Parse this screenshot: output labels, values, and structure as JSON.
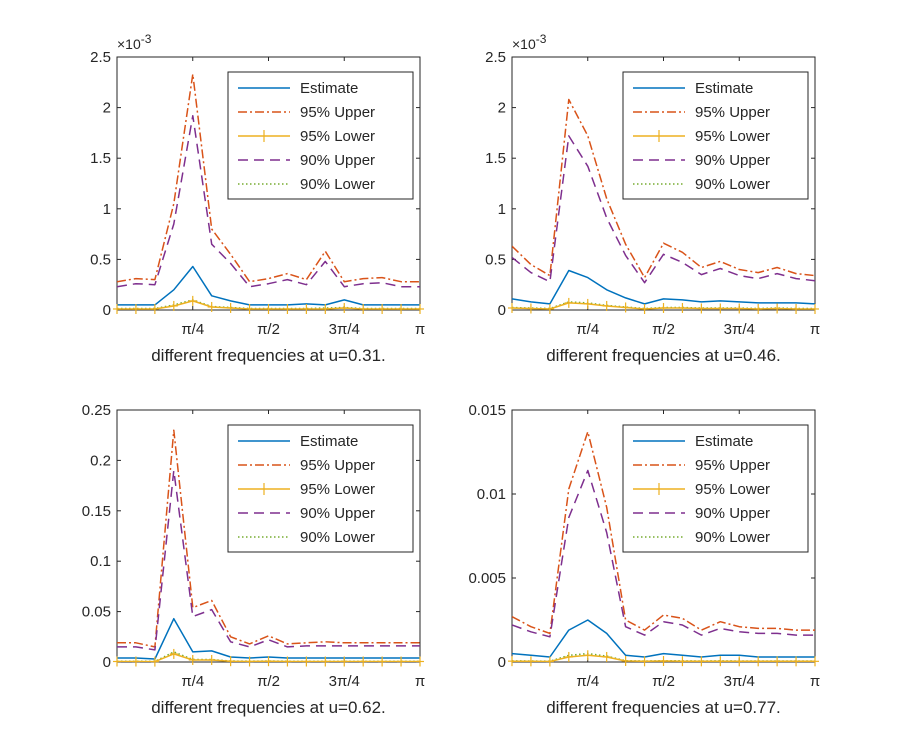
{
  "colors": {
    "estimate": "#0072BD",
    "upper95": "#D95319",
    "lower95": "#EDB120",
    "upper90": "#7E2F8E",
    "lower90": "#77AC30",
    "axis": "#262626"
  },
  "chart_data": [
    {
      "type": "line",
      "title": "",
      "xlabel": "different frequencies at u=0.31.",
      "ylabel": "",
      "exponent_label": "×10",
      "exponent_power": "-3",
      "xlim": [
        0,
        3.14159
      ],
      "ylim": [
        0,
        2.5
      ],
      "yticks": [
        0,
        0.5,
        1,
        1.5,
        2,
        2.5
      ],
      "ytick_labels": [
        "0",
        "0.5",
        "1",
        "1.5",
        "2",
        "2.5"
      ],
      "xticks": [
        0.7854,
        1.5708,
        2.3562,
        3.14159
      ],
      "xtick_labels": [
        "π/4",
        "π/2",
        "3π/4",
        "π"
      ],
      "x": [
        0,
        0.1963,
        0.3927,
        0.589,
        0.7854,
        0.9817,
        1.1781,
        1.3744,
        1.5708,
        1.7671,
        1.9635,
        2.1598,
        2.3562,
        2.5525,
        2.7489,
        2.9452,
        3.1416
      ],
      "series": [
        {
          "name": "Estimate",
          "values": [
            0.05,
            0.05,
            0.05,
            0.2,
            0.43,
            0.14,
            0.09,
            0.05,
            0.05,
            0.05,
            0.06,
            0.05,
            0.1,
            0.05,
            0.05,
            0.05,
            0.05
          ]
        },
        {
          "name": "95% Upper",
          "values": [
            0.28,
            0.31,
            0.3,
            1.05,
            2.33,
            0.8,
            0.55,
            0.28,
            0.31,
            0.36,
            0.3,
            0.58,
            0.28,
            0.31,
            0.32,
            0.28,
            0.28
          ]
        },
        {
          "name": "95% Lower",
          "values": [
            0.01,
            0.01,
            0.01,
            0.04,
            0.09,
            0.03,
            0.02,
            0.01,
            0.01,
            0.01,
            0.01,
            0.01,
            0.02,
            0.01,
            0.01,
            0.01,
            0.01
          ]
        },
        {
          "name": "90% Upper",
          "values": [
            0.23,
            0.26,
            0.25,
            0.85,
            1.92,
            0.65,
            0.46,
            0.23,
            0.26,
            0.3,
            0.25,
            0.48,
            0.23,
            0.26,
            0.27,
            0.23,
            0.23
          ]
        },
        {
          "name": "90% Lower",
          "values": [
            0.015,
            0.015,
            0.015,
            0.05,
            0.1,
            0.035,
            0.025,
            0.015,
            0.015,
            0.015,
            0.015,
            0.02,
            0.025,
            0.015,
            0.015,
            0.015,
            0.015
          ]
        }
      ],
      "legend_position": "top-right",
      "grid": false
    },
    {
      "type": "line",
      "title": "",
      "xlabel": "different frequencies at u=0.46.",
      "ylabel": "",
      "exponent_label": "×10",
      "exponent_power": "-3",
      "xlim": [
        0,
        3.14159
      ],
      "ylim": [
        0,
        2.5
      ],
      "yticks": [
        0,
        0.5,
        1,
        1.5,
        2,
        2.5
      ],
      "ytick_labels": [
        "0",
        "0.5",
        "1",
        "1.5",
        "2",
        "2.5"
      ],
      "xticks": [
        0.7854,
        1.5708,
        2.3562,
        3.14159
      ],
      "xtick_labels": [
        "π/4",
        "π/2",
        "3π/4",
        "π"
      ],
      "x": [
        0,
        0.1963,
        0.3927,
        0.589,
        0.7854,
        0.9817,
        1.1781,
        1.3744,
        1.5708,
        1.7671,
        1.9635,
        2.1598,
        2.3562,
        2.5525,
        2.7489,
        2.9452,
        3.1416
      ],
      "series": [
        {
          "name": "Estimate",
          "values": [
            0.11,
            0.08,
            0.06,
            0.39,
            0.32,
            0.2,
            0.12,
            0.06,
            0.11,
            0.1,
            0.08,
            0.09,
            0.08,
            0.07,
            0.07,
            0.07,
            0.06
          ]
        },
        {
          "name": "95% Upper",
          "values": [
            0.63,
            0.45,
            0.34,
            2.08,
            1.72,
            1.1,
            0.65,
            0.32,
            0.66,
            0.57,
            0.42,
            0.48,
            0.4,
            0.37,
            0.42,
            0.36,
            0.34
          ]
        },
        {
          "name": "95% Lower",
          "values": [
            0.02,
            0.015,
            0.01,
            0.07,
            0.06,
            0.04,
            0.025,
            0.01,
            0.02,
            0.02,
            0.015,
            0.015,
            0.015,
            0.01,
            0.015,
            0.01,
            0.01
          ]
        },
        {
          "name": "90% Upper",
          "values": [
            0.52,
            0.37,
            0.28,
            1.72,
            1.42,
            0.91,
            0.54,
            0.27,
            0.55,
            0.47,
            0.35,
            0.41,
            0.34,
            0.31,
            0.36,
            0.31,
            0.29
          ]
        },
        {
          "name": "90% Lower",
          "values": [
            0.025,
            0.02,
            0.015,
            0.08,
            0.07,
            0.045,
            0.03,
            0.015,
            0.025,
            0.025,
            0.02,
            0.02,
            0.02,
            0.015,
            0.02,
            0.015,
            0.015
          ]
        }
      ],
      "legend_position": "top-right",
      "grid": false
    },
    {
      "type": "line",
      "title": "",
      "xlabel": "different frequencies at u=0.62.",
      "ylabel": "",
      "exponent_label": "",
      "exponent_power": "",
      "xlim": [
        0,
        3.14159
      ],
      "ylim": [
        0,
        0.25
      ],
      "yticks": [
        0,
        0.05,
        0.1,
        0.15,
        0.2,
        0.25
      ],
      "ytick_labels": [
        "0",
        "0.05",
        "0.1",
        "0.15",
        "0.2",
        "0.25"
      ],
      "xticks": [
        0.7854,
        1.5708,
        2.3562,
        3.14159
      ],
      "xtick_labels": [
        "π/4",
        "π/2",
        "3π/4",
        "π"
      ],
      "x": [
        0,
        0.1963,
        0.3927,
        0.589,
        0.7854,
        0.9817,
        1.1781,
        1.3744,
        1.5708,
        1.7671,
        1.9635,
        2.1598,
        2.3562,
        2.5525,
        2.7489,
        2.9452,
        3.1416
      ],
      "series": [
        {
          "name": "Estimate",
          "values": [
            0.004,
            0.004,
            0.003,
            0.043,
            0.01,
            0.011,
            0.005,
            0.004,
            0.005,
            0.004,
            0.004,
            0.004,
            0.004,
            0.004,
            0.004,
            0.004,
            0.004
          ]
        },
        {
          "name": "95% Upper",
          "values": [
            0.019,
            0.019,
            0.015,
            0.23,
            0.054,
            0.061,
            0.025,
            0.018,
            0.026,
            0.018,
            0.019,
            0.02,
            0.019,
            0.019,
            0.019,
            0.019,
            0.019
          ]
        },
        {
          "name": "95% Lower",
          "values": [
            0.0005,
            0.0005,
            0.0004,
            0.008,
            0.002,
            0.002,
            0.0008,
            0.0005,
            0.0008,
            0.0005,
            0.0005,
            0.0005,
            0.0005,
            0.0005,
            0.0005,
            0.0005,
            0.0005
          ]
        },
        {
          "name": "90% Upper",
          "values": [
            0.015,
            0.015,
            0.012,
            0.19,
            0.045,
            0.052,
            0.02,
            0.015,
            0.022,
            0.015,
            0.016,
            0.016,
            0.016,
            0.016,
            0.016,
            0.016,
            0.016
          ]
        },
        {
          "name": "90% Lower",
          "values": [
            0.0008,
            0.0008,
            0.0006,
            0.01,
            0.0025,
            0.0025,
            0.001,
            0.0008,
            0.001,
            0.0008,
            0.0008,
            0.0008,
            0.0008,
            0.0008,
            0.0008,
            0.0008,
            0.0008
          ]
        }
      ],
      "legend_position": "top-right",
      "grid": false
    },
    {
      "type": "line",
      "title": "",
      "xlabel": "different frequencies at u=0.77.",
      "ylabel": "",
      "exponent_label": "",
      "exponent_power": "",
      "xlim": [
        0,
        3.14159
      ],
      "ylim": [
        0,
        0.015
      ],
      "yticks": [
        0,
        0.005,
        0.01,
        0.015
      ],
      "ytick_labels": [
        "0",
        "0.005",
        "0.01",
        "0.015"
      ],
      "xticks": [
        0.7854,
        1.5708,
        2.3562,
        3.14159
      ],
      "xtick_labels": [
        "π/4",
        "π/2",
        "3π/4",
        "π"
      ],
      "x": [
        0,
        0.1963,
        0.3927,
        0.589,
        0.7854,
        0.9817,
        1.1781,
        1.3744,
        1.5708,
        1.7671,
        1.9635,
        2.1598,
        2.3562,
        2.5525,
        2.7489,
        2.9452,
        3.1416
      ],
      "series": [
        {
          "name": "Estimate",
          "values": [
            0.0005,
            0.0004,
            0.0003,
            0.0019,
            0.0025,
            0.0017,
            0.0004,
            0.0003,
            0.0005,
            0.0004,
            0.0003,
            0.0004,
            0.0004,
            0.0003,
            0.0003,
            0.0003,
            0.0003
          ]
        },
        {
          "name": "95% Upper",
          "values": [
            0.0027,
            0.0021,
            0.0017,
            0.0103,
            0.0137,
            0.0092,
            0.0025,
            0.0019,
            0.0028,
            0.0026,
            0.0019,
            0.0024,
            0.0021,
            0.002,
            0.002,
            0.0019,
            0.0019
          ]
        },
        {
          "name": "95% Lower",
          "values": [
            5e-05,
            4e-05,
            3e-05,
            0.0003,
            0.0004,
            0.0003,
            6e-05,
            4e-05,
            6e-05,
            5e-05,
            4e-05,
            5e-05,
            4e-05,
            4e-05,
            4e-05,
            4e-05,
            4e-05
          ]
        },
        {
          "name": "90% Upper",
          "values": [
            0.0022,
            0.0018,
            0.0015,
            0.0086,
            0.0114,
            0.0077,
            0.0021,
            0.0016,
            0.0024,
            0.0022,
            0.0016,
            0.002,
            0.0018,
            0.0017,
            0.0017,
            0.0016,
            0.0016
          ]
        },
        {
          "name": "90% Lower",
          "values": [
            7e-05,
            6e-05,
            5e-05,
            0.0004,
            0.0005,
            0.00035,
            8e-05,
            6e-05,
            8e-05,
            7e-05,
            6e-05,
            7e-05,
            6e-05,
            6e-05,
            6e-05,
            6e-05,
            6e-05
          ]
        }
      ],
      "legend_position": "top-right",
      "grid": false
    }
  ]
}
